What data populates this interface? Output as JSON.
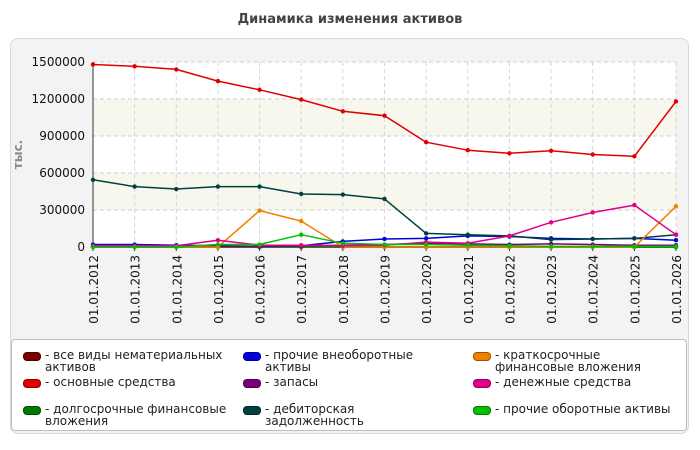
{
  "chart_data": {
    "type": "line",
    "title": "Динамика изменения активов",
    "ylabel": "тыс.",
    "xlabel": "",
    "ylim": [
      0,
      1500000
    ],
    "yticks": [
      0,
      300000,
      600000,
      900000,
      1200000,
      1500000
    ],
    "grid": true,
    "legend_position": "bottom",
    "x": [
      "01.01.2012",
      "01.01.2013",
      "01.01.2014",
      "01.01.2015",
      "01.01.2016",
      "01.01.2017",
      "01.01.2018",
      "01.01.2019",
      "01.01.2020",
      "01.01.2021",
      "01.01.2022",
      "01.01.2023",
      "01.01.2024",
      "01.01.2025",
      "01.01.2026"
    ],
    "series": [
      {
        "name": "- все виды нематериальных активов",
        "color": "#7a0000",
        "values": [
          0,
          0,
          0,
          0,
          0,
          0,
          0,
          0,
          0,
          0,
          0,
          0,
          0,
          0,
          0
        ]
      },
      {
        "name": "- основные средства",
        "color": "#e00000",
        "values": [
          1480000,
          1465000,
          1440000,
          1345000,
          1275000,
          1195000,
          1100000,
          1065000,
          850000,
          785000,
          760000,
          780000,
          750000,
          735000,
          1180000
        ]
      },
      {
        "name": "- долгосрочные финансовые вложения",
        "color": "#007a00",
        "values": [
          0,
          0,
          0,
          0,
          0,
          0,
          0,
          0,
          0,
          0,
          0,
          0,
          0,
          0,
          0
        ]
      },
      {
        "name": "- прочие внеоборотные активы",
        "color": "#0000e0",
        "values": [
          20000,
          20000,
          15000,
          10000,
          5000,
          10000,
          45000,
          65000,
          70000,
          90000,
          85000,
          70000,
          65000,
          70000,
          55000
        ]
      },
      {
        "name": "- запасы",
        "color": "#7a007a",
        "values": [
          5000,
          5000,
          5000,
          5000,
          5000,
          10000,
          15000,
          20000,
          30000,
          25000,
          20000,
          25000,
          20000,
          15000,
          15000
        ]
      },
      {
        "name": "- дебиторская задолженность",
        "color": "#004040",
        "values": [
          545000,
          490000,
          470000,
          490000,
          490000,
          430000,
          425000,
          390000,
          110000,
          100000,
          90000,
          60000,
          65000,
          70000,
          100000
        ]
      },
      {
        "name": "- краткосрочные финансовые вложения",
        "color": "#f08000",
        "values": [
          0,
          0,
          0,
          0,
          295000,
          210000,
          0,
          0,
          0,
          0,
          0,
          0,
          0,
          0,
          330000
        ]
      },
      {
        "name": "- денежные средства",
        "color": "#e0008a",
        "values": [
          10000,
          10000,
          10000,
          55000,
          15000,
          15000,
          10000,
          15000,
          40000,
          30000,
          90000,
          200000,
          280000,
          340000,
          100000
        ]
      },
      {
        "name": "- прочие оборотные активы",
        "color": "#00c000",
        "values": [
          0,
          0,
          0,
          20000,
          20000,
          100000,
          30000,
          20000,
          20000,
          15000,
          10000,
          5000,
          5000,
          5000,
          5000
        ]
      }
    ]
  }
}
